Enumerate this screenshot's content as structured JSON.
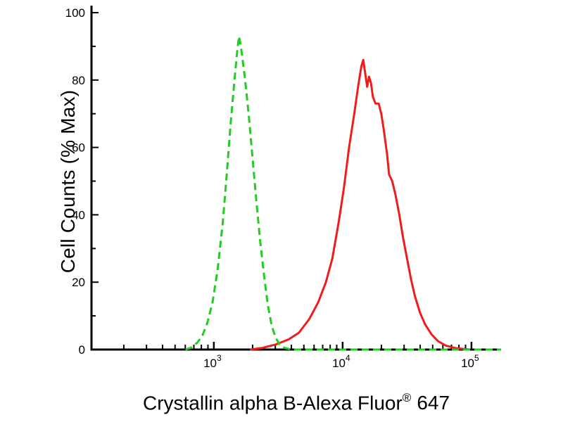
{
  "figure": {
    "ylabel": "Cell Counts (% Max)",
    "xlabel_main": "Crystallin alpha B-Alexa Fluor",
    "xlabel_sup": "®",
    "xlabel_suffix": "647"
  },
  "chart_data": {
    "type": "line",
    "title": "",
    "xlabel": "Crystallin alpha B-Alexa Fluor® 647",
    "ylabel": "Cell Counts (% Max)",
    "x_scale": "log10",
    "xlim_log10": [
      2.05,
      5.23
    ],
    "ylim": [
      0,
      100
    ],
    "x_major_ticks": [
      1000,
      10000,
      100000
    ],
    "x_tick_labels": [
      "10^3",
      "10^4",
      "10^5"
    ],
    "y_major_ticks": [
      0,
      20,
      40,
      60,
      80,
      100
    ],
    "y_minor_tick_step": 10,
    "grid": false,
    "legend": "none",
    "axis_color": "#000000",
    "series": [
      {
        "name": "red-solid",
        "color": "#f01c1c",
        "line_style": "solid",
        "line_width": 3,
        "peak_log10x": 4.16,
        "peak_value": 86,
        "points_log10x_y": [
          [
            3.28,
            0
          ],
          [
            3.38,
            0.5
          ],
          [
            3.48,
            1.5
          ],
          [
            3.58,
            3
          ],
          [
            3.66,
            5
          ],
          [
            3.74,
            9
          ],
          [
            3.81,
            14
          ],
          [
            3.87,
            20
          ],
          [
            3.92,
            27
          ],
          [
            3.97,
            38
          ],
          [
            4.01,
            48
          ],
          [
            4.05,
            60
          ],
          [
            4.09,
            70
          ],
          [
            4.12,
            78
          ],
          [
            4.145,
            84
          ],
          [
            4.16,
            86
          ],
          [
            4.175,
            82
          ],
          [
            4.19,
            78
          ],
          [
            4.205,
            81
          ],
          [
            4.22,
            79
          ],
          [
            4.235,
            75
          ],
          [
            4.255,
            73
          ],
          [
            4.28,
            73
          ],
          [
            4.3,
            70
          ],
          [
            4.32,
            65
          ],
          [
            4.345,
            58
          ],
          [
            4.36,
            52
          ],
          [
            4.385,
            50
          ],
          [
            4.41,
            46
          ],
          [
            4.44,
            40
          ],
          [
            4.47,
            33
          ],
          [
            4.5,
            27
          ],
          [
            4.53,
            21
          ],
          [
            4.56,
            16
          ],
          [
            4.6,
            11
          ],
          [
            4.64,
            7.5
          ],
          [
            4.69,
            4.5
          ],
          [
            4.74,
            2.5
          ],
          [
            4.8,
            1.2
          ],
          [
            4.88,
            0.4
          ],
          [
            4.99,
            0
          ]
        ]
      },
      {
        "name": "green-dashed",
        "color": "#22cc22",
        "line_style": "dashed",
        "line_width": 3,
        "peak_log10x": 3.2,
        "peak_value": 93,
        "points_log10x_y": [
          [
            2.78,
            0
          ],
          [
            2.82,
            0.5
          ],
          [
            2.87,
            2
          ],
          [
            2.91,
            4
          ],
          [
            2.95,
            8
          ],
          [
            2.99,
            14
          ],
          [
            3.03,
            24
          ],
          [
            3.07,
            38
          ],
          [
            3.1,
            52
          ],
          [
            3.13,
            67
          ],
          [
            3.16,
            80
          ],
          [
            3.18,
            88
          ],
          [
            3.195,
            93
          ],
          [
            3.21,
            90
          ],
          [
            3.24,
            81
          ],
          [
            3.27,
            70
          ],
          [
            3.3,
            57
          ],
          [
            3.33,
            44
          ],
          [
            3.36,
            32
          ],
          [
            3.39,
            22
          ],
          [
            3.42,
            13
          ],
          [
            3.45,
            7
          ],
          [
            3.48,
            3.5
          ],
          [
            3.51,
            1.5
          ],
          [
            3.55,
            0.5
          ],
          [
            3.6,
            0
          ],
          [
            3.8,
            0
          ],
          [
            4.0,
            0
          ],
          [
            4.2,
            0
          ],
          [
            4.4,
            0
          ],
          [
            4.6,
            0
          ],
          [
            4.8,
            0
          ],
          [
            5.0,
            0
          ],
          [
            5.23,
            0
          ]
        ]
      }
    ]
  }
}
